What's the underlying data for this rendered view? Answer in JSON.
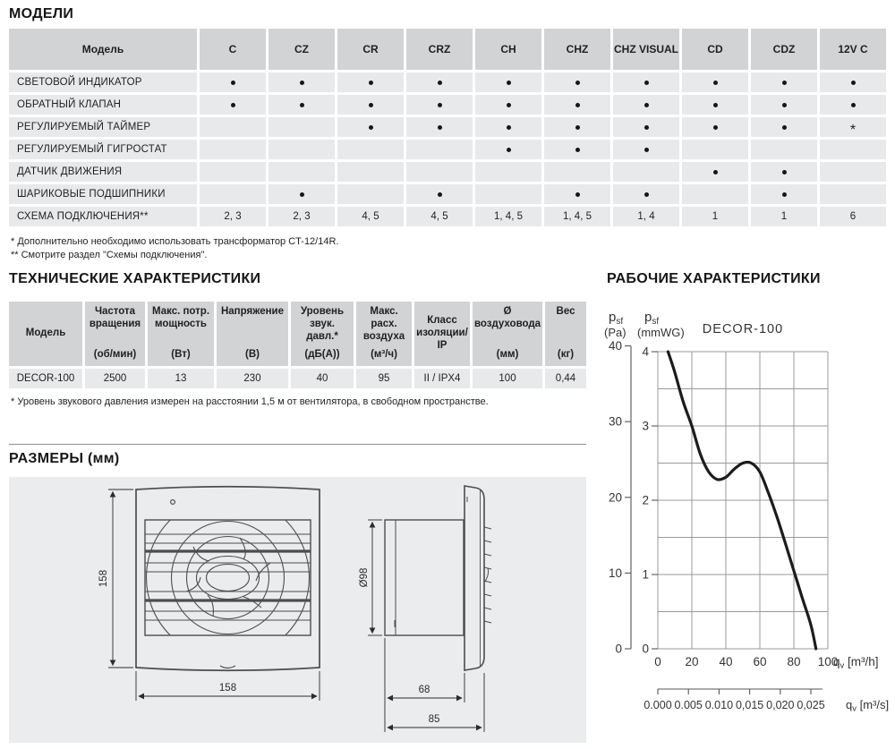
{
  "sections": {
    "models_title": "МОДЕЛИ",
    "tech_title": "ТЕХНИЧЕСКИЕ ХАРАКТЕРИСТИКИ",
    "dims_title": "РАЗМЕРЫ (мм)",
    "performance_title": "РАБОЧИЕ ХАРАКТЕРИСТИКИ"
  },
  "models_table": {
    "header_label": "Модель",
    "columns": [
      "C",
      "CZ",
      "CR",
      "CRZ",
      "CH",
      "CHZ",
      "CHZ VISUAL",
      "CD",
      "CDZ",
      "12V C"
    ],
    "rows": [
      {
        "feature": "СВЕТОВОЙ ИНДИКАТОР",
        "cells": [
          "•",
          "•",
          "•",
          "•",
          "•",
          "•",
          "•",
          "•",
          "•",
          "•"
        ]
      },
      {
        "feature": "ОБРАТНЫЙ КЛАПАН",
        "cells": [
          "•",
          "•",
          "•",
          "•",
          "•",
          "•",
          "•",
          "•",
          "•",
          "•"
        ]
      },
      {
        "feature": "РЕГУЛИРУЕМЫЙ ТАЙМЕР",
        "cells": [
          "",
          "",
          "•",
          "•",
          "•",
          "•",
          "•",
          "•",
          "•",
          "*"
        ]
      },
      {
        "feature": "РЕГУЛИРУЕМЫЙ ГИГРОСТАТ",
        "cells": [
          "",
          "",
          "",
          "",
          "•",
          "•",
          "•",
          "",
          "",
          ""
        ]
      },
      {
        "feature": "ДАТЧИК ДВИЖЕНИЯ",
        "cells": [
          "",
          "",
          "",
          "",
          "",
          "",
          "",
          "•",
          "•",
          ""
        ]
      },
      {
        "feature": "ШАРИКОВЫЕ ПОДШИПНИКИ",
        "cells": [
          "",
          "•",
          "",
          "•",
          "",
          "•",
          "•",
          "",
          "•",
          ""
        ]
      },
      {
        "feature": "СХЕМА ПОДКЛЮЧЕНИЯ**",
        "cells": [
          "2, 3",
          "2, 3",
          "4, 5",
          "4, 5",
          "1, 4, 5",
          "1, 4, 5",
          "1, 4",
          "1",
          "1",
          "6"
        ]
      }
    ],
    "footnote1": "* Дополнительно необходимо использовать трансформатор CT-12/14R.",
    "footnote2": "** Смотрите раздел \"Схемы подключения\"."
  },
  "tech_table": {
    "columns": [
      {
        "name": "Модель",
        "unit": ""
      },
      {
        "name": "Частота вращения",
        "unit": "(об/мин)"
      },
      {
        "name": "Макс. потр. мощность",
        "unit": "(Вт)"
      },
      {
        "name": "Напряжение",
        "unit": "(В)"
      },
      {
        "name": "Уровень звук. давл.*",
        "unit": "(дБ(А))"
      },
      {
        "name": "Макс. расх. воздуха",
        "unit": "(м³/ч)"
      },
      {
        "name": "Класс изоляции/ IP",
        "unit": ""
      },
      {
        "name": "Ø воздуховода",
        "unit": "(мм)"
      },
      {
        "name": "Вес",
        "unit": "(кг)"
      }
    ],
    "row": [
      "DECOR-100",
      "2500",
      "13",
      "230",
      "40",
      "95",
      "II / IPX4",
      "100",
      "0,44"
    ],
    "footnote": "* Уровень звукового давления измерен на расстоянии 1,5 м от вентилятора, в свободном пространстве."
  },
  "dimensions": {
    "front_height": "158",
    "front_width": "158",
    "duct_diameter": "Ø98",
    "duct_depth": "68",
    "total_depth": "85"
  },
  "chart_data": {
    "type": "line",
    "title": "DECOR-100",
    "model": "DECOR-100",
    "y_axis_pa": {
      "label_main": "p",
      "label_sub": "sf",
      "label_unit": "(Pa)",
      "ticks": [
        0,
        10,
        20,
        30,
        40
      ],
      "range": [
        0,
        40
      ]
    },
    "y_axis_mmwg": {
      "label_main": "p",
      "label_sub": "sf",
      "label_unit": "(mmWG)",
      "ticks": [
        0,
        1,
        2,
        3,
        4
      ],
      "range": [
        0,
        4
      ]
    },
    "x_axis_m3h": {
      "ticks": [
        0,
        20,
        40,
        60,
        80,
        100
      ],
      "unit": "qv [m³/h]",
      "range": [
        0,
        100
      ]
    },
    "x_axis_m3s": {
      "tick_labels": [
        "0.000",
        "0.005",
        "0.010",
        "0,015",
        "0,020",
        "0,025"
      ],
      "tick_values_m3h": [
        0,
        18,
        36,
        54,
        72,
        90
      ],
      "unit": "qv [m³/s]"
    },
    "grid": {
      "x_step": 20,
      "y_step_mmwg": 0.5
    },
    "pa_per_mmwg": 9.81,
    "curve_points_qv_mmwg": [
      [
        6,
        4.0
      ],
      [
        10,
        3.72
      ],
      [
        15,
        3.32
      ],
      [
        20,
        3.0
      ],
      [
        25,
        2.62
      ],
      [
        30,
        2.38
      ],
      [
        35,
        2.28
      ],
      [
        40,
        2.31
      ],
      [
        45,
        2.42
      ],
      [
        50,
        2.5
      ],
      [
        55,
        2.5
      ],
      [
        60,
        2.38
      ],
      [
        65,
        2.1
      ],
      [
        70,
        1.78
      ],
      [
        75,
        1.42
      ],
      [
        80,
        1.05
      ],
      [
        85,
        0.68
      ],
      [
        90,
        0.32
      ],
      [
        93,
        0.0
      ]
    ]
  },
  "colors": {
    "table_header_bg": "#d2d3d4",
    "table_cell_bg": "#e8e9ea",
    "panel_bg": "#ebeced",
    "curve": "#1c1c1c",
    "grid_line": "#999999",
    "text": "#1f1f1f"
  }
}
